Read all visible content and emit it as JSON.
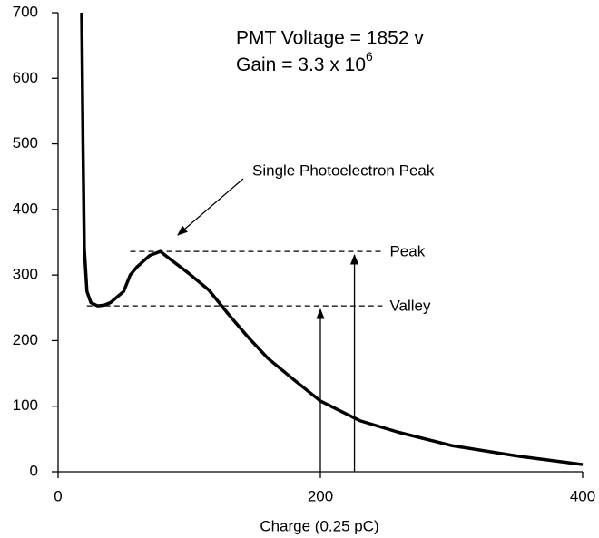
{
  "chart_data": {
    "type": "line",
    "x_label": "Charge (0.25 pC)",
    "annotations": {
      "voltage": "PMT Voltage = 1852 v",
      "gain": "Gain = 3.3 x 10",
      "gain_exponent": "6",
      "peak_note": "Single Photoelectron Peak"
    },
    "x": [
      18,
      19,
      20,
      22,
      25,
      30,
      35,
      40,
      50,
      55,
      60,
      70,
      78,
      85,
      100,
      115,
      130,
      145,
      160,
      180,
      200,
      230,
      260,
      300,
      350,
      400
    ],
    "series": [
      {
        "color": "#000000",
        "values": [
          700,
          500,
          340,
          275,
          258,
          253,
          254,
          258,
          275,
          300,
          312,
          330,
          336,
          325,
          302,
          277,
          240,
          205,
          173,
          140,
          108,
          78,
          60,
          40,
          24,
          11
        ]
      }
    ],
    "reference_lines": [
      {
        "label": "Peak",
        "value": 336,
        "from": 55,
        "to": 228,
        "arrow_x": 226
      },
      {
        "label": "Valley",
        "value": 253,
        "from": 22,
        "to": 228,
        "arrow_x": 200
      }
    ],
    "xlim": [
      0,
      400
    ],
    "xticks": [
      0,
      200,
      400
    ],
    "ylim": [
      0,
      700
    ],
    "yticks": [
      0,
      100,
      200,
      300,
      400,
      500,
      600,
      700
    ]
  }
}
